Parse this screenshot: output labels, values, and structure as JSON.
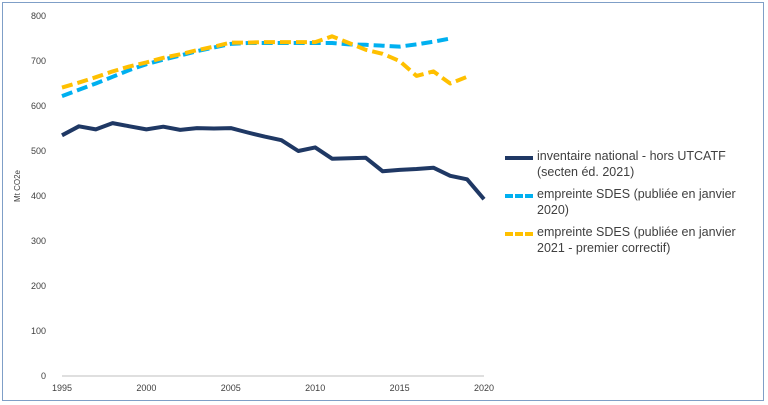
{
  "chart_data": {
    "type": "line",
    "title": "",
    "xlabel": "",
    "ylabel": "Mt CO2e",
    "xlim": [
      1995,
      2020
    ],
    "ylim": [
      0,
      800
    ],
    "xticks": [
      1995,
      2000,
      2005,
      2010,
      2015,
      2020
    ],
    "yticks": [
      0,
      100,
      200,
      300,
      400,
      500,
      600,
      700,
      800
    ],
    "grid": false,
    "legend_position": "right",
    "series": [
      {
        "name": "inventaire national - hors UTCATF (secten éd. 2021)",
        "color": "#1f3864",
        "dash": "solid",
        "x": [
          1995,
          1996,
          1997,
          1998,
          1999,
          2000,
          2001,
          2002,
          2003,
          2004,
          2005,
          2006,
          2007,
          2008,
          2009,
          2010,
          2011,
          2012,
          2013,
          2014,
          2015,
          2016,
          2017,
          2018,
          2019,
          2020
        ],
        "y": [
          535,
          555,
          548,
          562,
          555,
          548,
          554,
          547,
          551,
          550,
          551,
          541,
          532,
          524,
          500,
          508,
          483,
          484,
          485,
          455,
          458,
          460,
          463,
          445,
          437,
          393
        ]
      },
      {
        "name": "empreinte SDES (publiée en janvier 2020)",
        "color": "#00b0f0",
        "dash": "dashed",
        "x": [
          1995,
          1996,
          1997,
          1998,
          1999,
          2000,
          2001,
          2002,
          2003,
          2004,
          2005,
          2006,
          2007,
          2008,
          2009,
          2010,
          2011,
          2012,
          2013,
          2014,
          2015,
          2016,
          2017,
          2018
        ],
        "y": [
          622,
          636,
          650,
          665,
          680,
          693,
          703,
          712,
          722,
          730,
          738,
          740,
          740,
          740,
          740,
          740,
          740,
          737,
          736,
          734,
          732,
          737,
          743,
          750
        ]
      },
      {
        "name": "empreinte SDES (publiée en janvier 2021 - premier correctif)",
        "color": "#ffc000",
        "dash": "dashed",
        "x": [
          1995,
          1996,
          1997,
          1998,
          1999,
          2000,
          2001,
          2002,
          2003,
          2004,
          2005,
          2006,
          2007,
          2008,
          2009,
          2010,
          2011,
          2012,
          2013,
          2014,
          2015,
          2016,
          2017,
          2018,
          2019
        ],
        "y": [
          641,
          652,
          664,
          677,
          688,
          697,
          707,
          715,
          724,
          732,
          741,
          741,
          742,
          742,
          742,
          742,
          755,
          740,
          725,
          716,
          700,
          667,
          677,
          650,
          665
        ]
      }
    ]
  }
}
